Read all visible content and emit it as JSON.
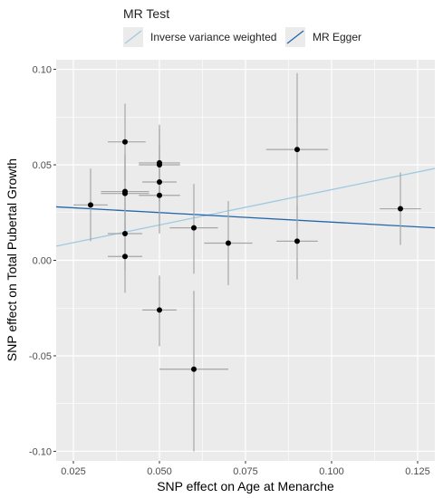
{
  "chart_data": {
    "type": "scatter",
    "title": "",
    "xlabel": "SNP effect on Age at Menarche",
    "ylabel": "SNP effect on Total Pubertal Growth",
    "xlim": [
      0.02,
      0.13
    ],
    "ylim": [
      -0.105,
      0.105
    ],
    "xticks": [
      0.025,
      0.05,
      0.075,
      0.1,
      0.125
    ],
    "xtick_labels": [
      "0.025",
      "0.050",
      "0.075",
      "0.100",
      "0.125"
    ],
    "yticks": [
      -0.1,
      -0.05,
      0.0,
      0.05,
      0.1
    ],
    "ytick_labels": [
      "-0.10",
      "-0.05",
      "0.00",
      "0.05",
      "0.10"
    ],
    "grid": true,
    "legend": {
      "title": "MR Test",
      "position": "top",
      "entries": [
        "Inverse variance weighted",
        "MR Egger"
      ]
    },
    "colors": {
      "panel": "#ebebeb",
      "grid": "#ffffff",
      "points": "#000000",
      "error_bars": "#a6a6a6",
      "ivw": "#9ecae1",
      "egger": "#2166ac"
    },
    "points": [
      {
        "x": 0.03,
        "y": 0.029,
        "x_lo": 0.025,
        "x_hi": 0.035,
        "y_lo": 0.01,
        "y_hi": 0.048
      },
      {
        "x": 0.04,
        "y": 0.062,
        "x_lo": 0.035,
        "x_hi": 0.046,
        "y_lo": 0.041,
        "y_hi": 0.082
      },
      {
        "x": 0.04,
        "y": 0.036,
        "x_lo": 0.033,
        "x_hi": 0.047,
        "y_lo": 0.016,
        "y_hi": 0.056
      },
      {
        "x": 0.04,
        "y": 0.035,
        "x_lo": 0.033,
        "x_hi": 0.047,
        "y_lo": 0.015,
        "y_hi": 0.055
      },
      {
        "x": 0.04,
        "y": 0.014,
        "x_lo": 0.035,
        "x_hi": 0.045,
        "y_lo": -0.005,
        "y_hi": 0.034
      },
      {
        "x": 0.04,
        "y": 0.002,
        "x_lo": 0.035,
        "x_hi": 0.045,
        "y_lo": -0.017,
        "y_hi": 0.021
      },
      {
        "x": 0.05,
        "y": 0.051,
        "x_lo": 0.044,
        "x_hi": 0.056,
        "y_lo": 0.031,
        "y_hi": 0.071
      },
      {
        "x": 0.05,
        "y": 0.05,
        "x_lo": 0.044,
        "x_hi": 0.056,
        "y_lo": 0.031,
        "y_hi": 0.069
      },
      {
        "x": 0.05,
        "y": 0.041,
        "x_lo": 0.045,
        "x_hi": 0.055,
        "y_lo": 0.021,
        "y_hi": 0.061
      },
      {
        "x": 0.05,
        "y": 0.034,
        "x_lo": 0.044,
        "x_hi": 0.056,
        "y_lo": 0.014,
        "y_hi": 0.054
      },
      {
        "x": 0.05,
        "y": -0.026,
        "x_lo": 0.045,
        "x_hi": 0.055,
        "y_lo": -0.045,
        "y_hi": -0.008
      },
      {
        "x": 0.06,
        "y": 0.017,
        "x_lo": 0.053,
        "x_hi": 0.067,
        "y_lo": -0.007,
        "y_hi": 0.04
      },
      {
        "x": 0.06,
        "y": -0.057,
        "x_lo": 0.05,
        "x_hi": 0.07,
        "y_lo": -0.1,
        "y_hi": -0.016
      },
      {
        "x": 0.07,
        "y": 0.009,
        "x_lo": 0.063,
        "x_hi": 0.077,
        "y_lo": -0.013,
        "y_hi": 0.031
      },
      {
        "x": 0.09,
        "y": 0.058,
        "x_lo": 0.081,
        "x_hi": 0.099,
        "y_lo": 0.018,
        "y_hi": 0.098
      },
      {
        "x": 0.09,
        "y": 0.01,
        "x_lo": 0.084,
        "x_hi": 0.096,
        "y_lo": -0.01,
        "y_hi": 0.029
      },
      {
        "x": 0.12,
        "y": 0.027,
        "x_lo": 0.114,
        "x_hi": 0.126,
        "y_lo": 0.008,
        "y_hi": 0.046
      }
    ],
    "lines": [
      {
        "name": "Inverse variance weighted",
        "intercept": 0.0,
        "slope": 0.37
      },
      {
        "name": "MR Egger",
        "intercept": 0.03,
        "slope": -0.1
      }
    ]
  }
}
